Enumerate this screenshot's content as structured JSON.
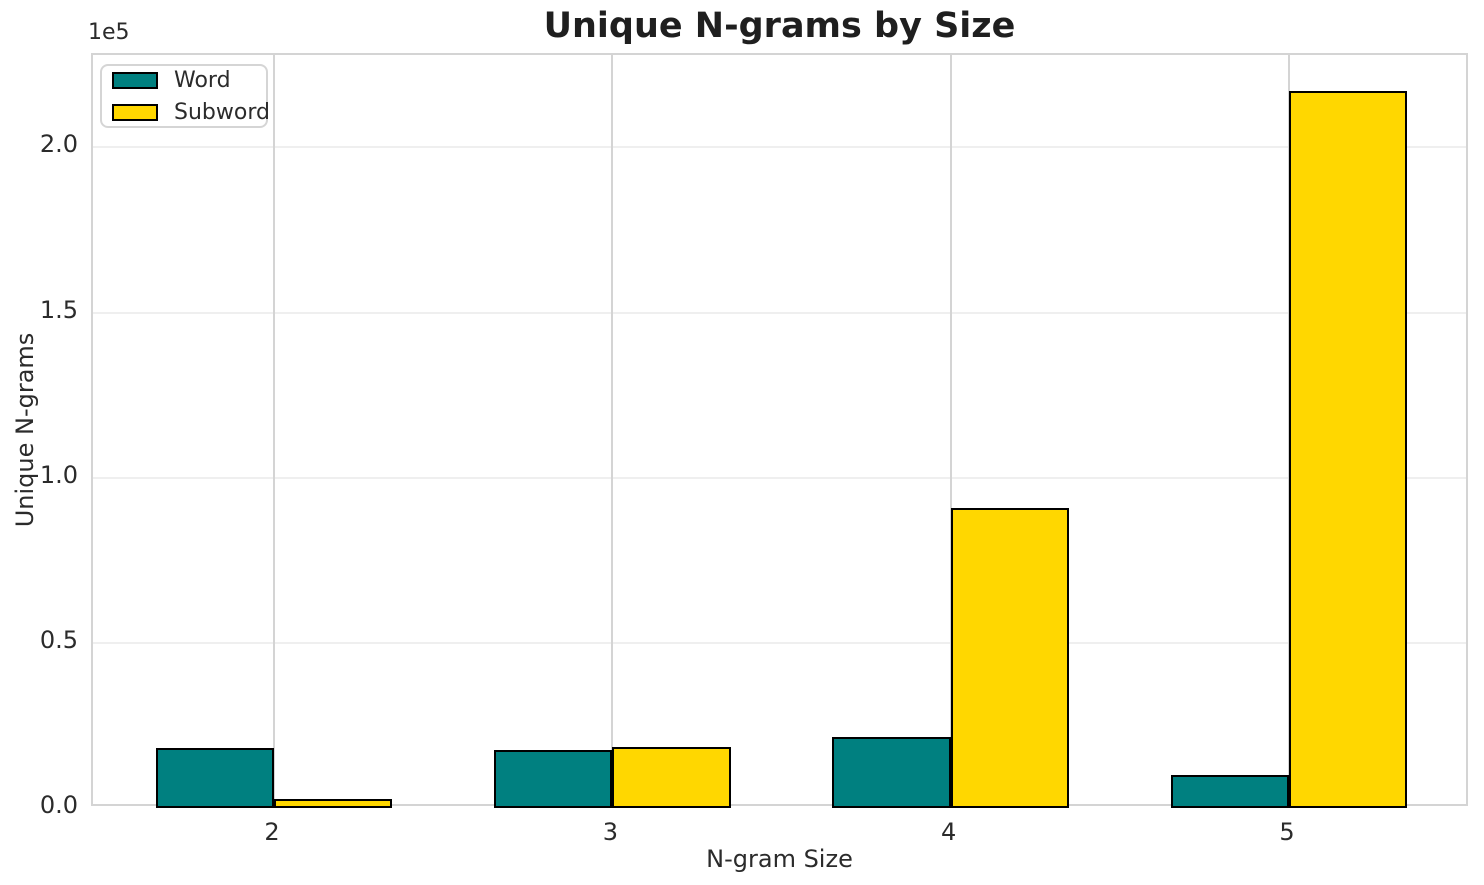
{
  "title": "Unique N-grams by Size",
  "axes": {
    "xlabel": "N-gram Size",
    "ylabel": "Unique N-grams",
    "y_offset_label": "1e5",
    "yticks": [
      "0.0",
      "0.5",
      "1.0",
      "1.5",
      "2.0"
    ],
    "xticks": [
      "2",
      "3",
      "4",
      "5"
    ]
  },
  "legend": {
    "items": [
      {
        "label": "Word",
        "color": "#008080"
      },
      {
        "label": "Subword",
        "color": "#FFD700"
      }
    ]
  },
  "colors": {
    "word": "#008080",
    "subword": "#FFD700",
    "bar_edge": "#000000",
    "grid_horizontal": "#efefef",
    "grid_vertical": "#d4d4d4",
    "spine": "#d4d4d4",
    "text": "#2b2b2b"
  },
  "chart_data": {
    "type": "bar",
    "title": "Unique N-grams by Size",
    "xlabel": "N-gram Size",
    "ylabel": "Unique N-grams",
    "categories": [
      "2",
      "3",
      "4",
      "5"
    ],
    "series": [
      {
        "name": "Word",
        "color": "#008080",
        "values": [
          18200,
          17700,
          21500,
          10100
        ]
      },
      {
        "name": "Subword",
        "color": "#FFD700",
        "values": [
          2700,
          18500,
          90800,
          217000
        ]
      }
    ],
    "ylim": [
      0,
      228000
    ],
    "ytick_values": [
      0,
      50000,
      100000,
      150000,
      200000
    ],
    "y_scale_note": "y axis labeled in units of 1e5",
    "grid": true,
    "legend_position": "upper left",
    "bar_width": 0.35,
    "bar_edge_color": "#000000"
  }
}
